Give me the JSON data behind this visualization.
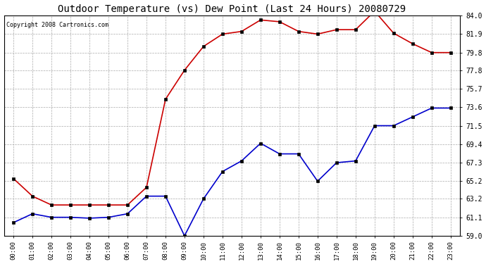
{
  "title": "Outdoor Temperature (vs) Dew Point (Last 24 Hours) 20080729",
  "copyright_text": "Copyright 2008 Cartronics.com",
  "hours": [
    "00:00",
    "01:00",
    "02:00",
    "03:00",
    "04:00",
    "05:00",
    "06:00",
    "07:00",
    "08:00",
    "09:00",
    "10:00",
    "11:00",
    "12:00",
    "13:00",
    "14:00",
    "15:00",
    "16:00",
    "17:00",
    "18:00",
    "19:00",
    "20:00",
    "21:00",
    "22:00",
    "23:00"
  ],
  "temp": [
    65.5,
    63.5,
    62.5,
    62.5,
    62.5,
    62.5,
    62.5,
    64.5,
    74.5,
    77.8,
    80.5,
    81.9,
    82.2,
    83.5,
    83.3,
    82.2,
    81.9,
    82.4,
    82.4,
    84.5,
    82.0,
    80.8,
    79.8,
    79.8
  ],
  "dew": [
    60.5,
    61.5,
    61.1,
    61.1,
    61.0,
    61.1,
    61.5,
    63.5,
    63.5,
    59.0,
    63.2,
    66.3,
    67.5,
    69.5,
    68.3,
    68.3,
    65.2,
    67.3,
    67.5,
    71.5,
    71.5,
    72.5,
    73.5,
    73.5
  ],
  "temp_color": "#cc0000",
  "dew_color": "#0000cc",
  "bg_color": "#ffffff",
  "grid_color": "#aaaaaa",
  "ylim_min": 59.0,
  "ylim_max": 84.0,
  "yticks": [
    59.0,
    61.1,
    63.2,
    65.2,
    67.3,
    69.4,
    71.5,
    73.6,
    75.7,
    77.8,
    79.8,
    81.9,
    84.0
  ],
  "title_fontsize": 10,
  "copyright_fontsize": 6,
  "markersize": 3,
  "linewidth": 1.2
}
